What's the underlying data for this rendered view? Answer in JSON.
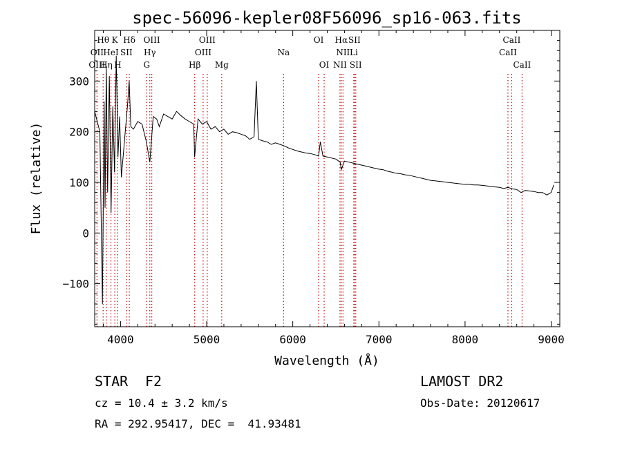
{
  "chart_data": {
    "type": "line",
    "title": "spec-56096-kepler08F56096_sp16-063.fits",
    "xlabel": "Wavelength (Å)",
    "ylabel": "Flux (relative)",
    "xlim": [
      3700,
      9100
    ],
    "ylim": [
      -185,
      400
    ],
    "x_ticks": [
      4000,
      5000,
      6000,
      7000,
      8000,
      9000
    ],
    "y_ticks": [
      -100,
      0,
      100,
      200,
      300
    ],
    "x_tick_labels": [
      "4000",
      "5000",
      "6000",
      "7000",
      "8000",
      "9000"
    ],
    "y_tick_labels": [
      "−100",
      "0",
      "100",
      "200",
      "300"
    ],
    "grid": false,
    "line_color": "#000000",
    "marker_color": "#cc0000",
    "series": [
      {
        "values_x": [
          3700,
          3760,
          3790,
          3810,
          3820,
          3835,
          3850,
          3870,
          3890,
          3910,
          3930,
          3950,
          3970,
          3990,
          4010,
          4050,
          4080,
          4100,
          4120,
          4150,
          4200,
          4250,
          4300,
          4340,
          4380,
          4420,
          4450,
          4500,
          4550,
          4600,
          4650,
          4700,
          4750,
          4800,
          4850,
          4860,
          4900,
          4950,
          5000,
          5050,
          5100,
          5150,
          5200,
          5250,
          5300,
          5350,
          5400,
          5450,
          5500,
          5550,
          5577,
          5600,
          5650,
          5700,
          5750,
          5800,
          5850,
          5900,
          5950,
          6000,
          6050,
          6100,
          6150,
          6200,
          6250,
          6300,
          6320,
          6350,
          6400,
          6450,
          6500,
          6550,
          6563,
          6600,
          6650,
          6700,
          6750,
          6800,
          6850,
          6900,
          6950,
          7000,
          7050,
          7100,
          7150,
          7200,
          7250,
          7300,
          7350,
          7400,
          7450,
          7500,
          7550,
          7600,
          7650,
          7700,
          7750,
          7800,
          7850,
          7900,
          7950,
          8000,
          8050,
          8100,
          8150,
          8200,
          8250,
          8300,
          8350,
          8400,
          8450,
          8500,
          8550,
          8600,
          8650,
          8700,
          8750,
          8800,
          8850,
          8900,
          8950,
          9000,
          9030
        ],
        "values_y": [
          240,
          200,
          -140,
          260,
          50,
          330,
          80,
          310,
          40,
          250,
          120,
          350,
          150,
          230,
          110,
          190,
          250,
          300,
          210,
          205,
          220,
          215,
          180,
          140,
          230,
          225,
          210,
          235,
          230,
          225,
          240,
          232,
          225,
          220,
          215,
          150,
          225,
          215,
          220,
          205,
          210,
          200,
          205,
          195,
          200,
          198,
          195,
          192,
          185,
          190,
          300,
          185,
          182,
          180,
          175,
          178,
          175,
          172,
          168,
          165,
          162,
          160,
          158,
          157,
          155,
          152,
          180,
          152,
          150,
          148,
          146,
          140,
          125,
          142,
          140,
          138,
          136,
          134,
          132,
          130,
          128,
          126,
          125,
          122,
          120,
          118,
          117,
          115,
          114,
          112,
          110,
          108,
          106,
          104,
          103,
          102,
          101,
          100,
          99,
          98,
          97,
          96,
          96,
          95,
          95,
          94,
          93,
          92,
          91,
          90,
          88,
          90,
          87,
          86,
          80,
          84,
          83,
          82,
          80,
          80,
          75,
          80,
          95
        ]
      }
    ],
    "spectral_lines": [
      {
        "label": "Hθ",
        "x": 3798,
        "row": 1
      },
      {
        "label": "K",
        "x": 3934,
        "row": 1
      },
      {
        "label": "Hδ",
        "x": 4102,
        "row": 1
      },
      {
        "label": "OIII",
        "x": 4363,
        "row": 1
      },
      {
        "label": "OIII",
        "x": 5007,
        "row": 1
      },
      {
        "label": "OI",
        "x": 6300,
        "row": 1
      },
      {
        "label": "Hα",
        "x": 6563,
        "row": 1
      },
      {
        "label": "SII",
        "x": 6716,
        "row": 1
      },
      {
        "label": "CaII",
        "x": 8542,
        "row": 1
      },
      {
        "label": "OII",
        "x": 3727,
        "row": 2
      },
      {
        "label": "HeI",
        "x": 3889,
        "row": 2
      },
      {
        "label": "SII",
        "x": 4068,
        "row": 2
      },
      {
        "label": "Hγ",
        "x": 4340,
        "row": 2
      },
      {
        "label": "OIII",
        "x": 4959,
        "row": 2
      },
      {
        "label": "Na",
        "x": 5893,
        "row": 2
      },
      {
        "label": "NII",
        "x": 6583,
        "row": 2
      },
      {
        "label": "Li",
        "x": 6708,
        "row": 2
      },
      {
        "label": "CaII",
        "x": 8498,
        "row": 2
      },
      {
        "label": "OIII",
        "x": 3727,
        "row": 3
      },
      {
        "label": "Hη",
        "x": 3835,
        "row": 3
      },
      {
        "label": "H",
        "x": 3968,
        "row": 3
      },
      {
        "label": "G",
        "x": 4304,
        "row": 3
      },
      {
        "label": "Hβ",
        "x": 4861,
        "row": 3
      },
      {
        "label": "Mg",
        "x": 5175,
        "row": 3
      },
      {
        "label": "OI",
        "x": 6364,
        "row": 3
      },
      {
        "label": "NII",
        "x": 6548,
        "row": 3
      },
      {
        "label": "SII",
        "x": 6731,
        "row": 3
      },
      {
        "label": "CaII",
        "x": 8662,
        "row": 3
      }
    ]
  },
  "info": {
    "object_class": "STAR",
    "subclass": "F2",
    "survey": "LAMOST DR2",
    "cz": "cz = 10.4 ± 3.2 km/s",
    "obs_date": "Obs-Date: 20120617",
    "coords": "RA = 292.95417, DEC =  41.93481"
  }
}
